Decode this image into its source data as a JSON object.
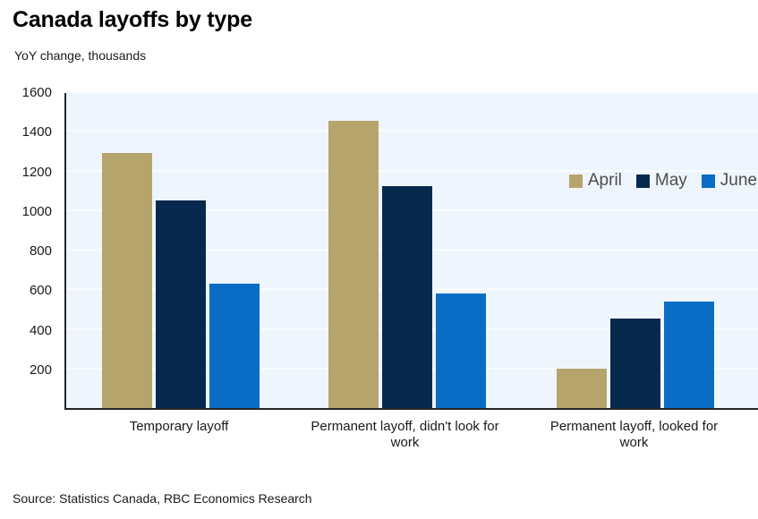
{
  "title": "Canada layoffs by type",
  "subtitle": "YoY change, thousands",
  "source": "Source: Statistics Canada, RBC Economics Research",
  "colors": {
    "april": "#b5a46c",
    "may": "#07294d",
    "june": "#0a6dc5",
    "plot_background": "#eef5fd",
    "gridline": "#f9fcff",
    "axis": "#262626"
  },
  "chart_data": {
    "type": "bar",
    "title": "Canada layoffs by type",
    "subtitle": "YoY change, thousands",
    "categories": [
      "Temporary layoff",
      "Permanent layoff, didn't look for work",
      "Permanent layoff, looked for work"
    ],
    "series": [
      {
        "name": "April",
        "color": "#b5a46c",
        "values": [
          1290,
          1450,
          200
        ]
      },
      {
        "name": "May",
        "color": "#07294d",
        "values": [
          1050,
          1120,
          450
        ]
      },
      {
        "name": "June",
        "color": "#0a6dc5",
        "values": [
          630,
          580,
          540
        ]
      }
    ],
    "xlabel": "",
    "ylabel": "YoY change, thousands",
    "ylim": [
      0,
      1600
    ],
    "yticks": [
      200,
      400,
      600,
      800,
      1000,
      1200,
      1400,
      1600
    ],
    "grid": true,
    "legend_position": "upper-right-inside"
  }
}
